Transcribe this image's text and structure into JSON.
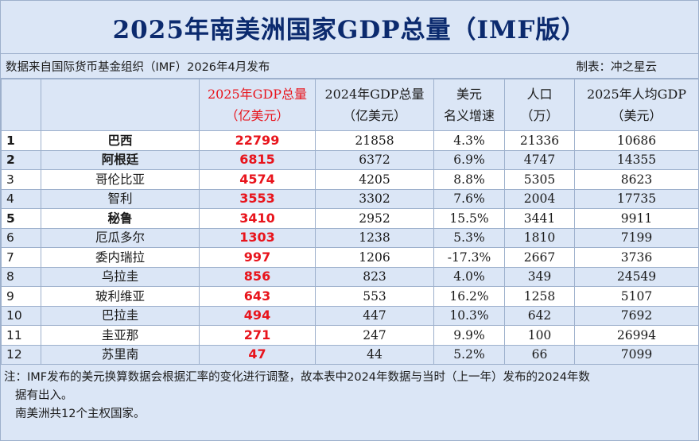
{
  "title": "2025年南美洲国家GDP总量（IMF版）",
  "source": "数据来自国际货币基金组织（IMF）2026年4月发布",
  "maker": "制表：冲之星云",
  "headers": {
    "rank": "",
    "country": "",
    "gdp2025_line1": "2025年GDP总量",
    "gdp2025_line2": "（亿美元）",
    "gdp2024_line1": "2024年GDP总量",
    "gdp2024_line2": "（亿美元）",
    "growth_line1": "美元",
    "growth_line2": "名义增速",
    "pop_line1": "人口",
    "pop_line2": "（万）",
    "percap_line1": "2025年人均GDP",
    "percap_line2": "（美元）"
  },
  "rows": [
    {
      "rank": "1",
      "country": "巴西",
      "gdp2025": "22799",
      "gdp2024": "21858",
      "growth": "4.3%",
      "pop": "21336",
      "percap": "10686",
      "bold": true
    },
    {
      "rank": "2",
      "country": "阿根廷",
      "gdp2025": "6815",
      "gdp2024": "6372",
      "growth": "6.9%",
      "pop": "4747",
      "percap": "14355",
      "bold": true
    },
    {
      "rank": "3",
      "country": "哥伦比亚",
      "gdp2025": "4574",
      "gdp2024": "4205",
      "growth": "8.8%",
      "pop": "5305",
      "percap": "8623",
      "bold": false
    },
    {
      "rank": "4",
      "country": "智利",
      "gdp2025": "3553",
      "gdp2024": "3302",
      "growth": "7.6%",
      "pop": "2004",
      "percap": "17735",
      "bold": false
    },
    {
      "rank": "5",
      "country": "秘鲁",
      "gdp2025": "3410",
      "gdp2024": "2952",
      "growth": "15.5%",
      "pop": "3441",
      "percap": "9911",
      "bold": true
    },
    {
      "rank": "6",
      "country": "厄瓜多尔",
      "gdp2025": "1303",
      "gdp2024": "1238",
      "growth": "5.3%",
      "pop": "1810",
      "percap": "7199",
      "bold": false
    },
    {
      "rank": "7",
      "country": "委内瑞拉",
      "gdp2025": "997",
      "gdp2024": "1206",
      "growth": "-17.3%",
      "pop": "2667",
      "percap": "3736",
      "bold": false
    },
    {
      "rank": "8",
      "country": "乌拉圭",
      "gdp2025": "856",
      "gdp2024": "823",
      "growth": "4.0%",
      "pop": "349",
      "percap": "24549",
      "bold": false
    },
    {
      "rank": "9",
      "country": "玻利维亚",
      "gdp2025": "643",
      "gdp2024": "553",
      "growth": "16.2%",
      "pop": "1258",
      "percap": "5107",
      "bold": false
    },
    {
      "rank": "10",
      "country": "巴拉圭",
      "gdp2025": "494",
      "gdp2024": "447",
      "growth": "10.3%",
      "pop": "642",
      "percap": "7692",
      "bold": false
    },
    {
      "rank": "11",
      "country": "圭亚那",
      "gdp2025": "271",
      "gdp2024": "247",
      "growth": "9.9%",
      "pop": "100",
      "percap": "26994",
      "bold": false
    },
    {
      "rank": "12",
      "country": "苏里南",
      "gdp2025": "47",
      "gdp2024": "44",
      "growth": "5.2%",
      "pop": "66",
      "percap": "7099",
      "bold": false
    }
  ],
  "notes": {
    "line1": "注：IMF发布的美元换算数据会根据汇率的变化进行调整，故本表中2024年数据与当时（上一年）发布的2024年数",
    "line2": "据有出入。",
    "line3": "南美洲共12个主权国家。"
  },
  "colors": {
    "accent_red": "#e8141c",
    "title_blue": "#0b2a6e",
    "stripe_blue": "#dbe6f6",
    "border": "#9db0cc"
  }
}
